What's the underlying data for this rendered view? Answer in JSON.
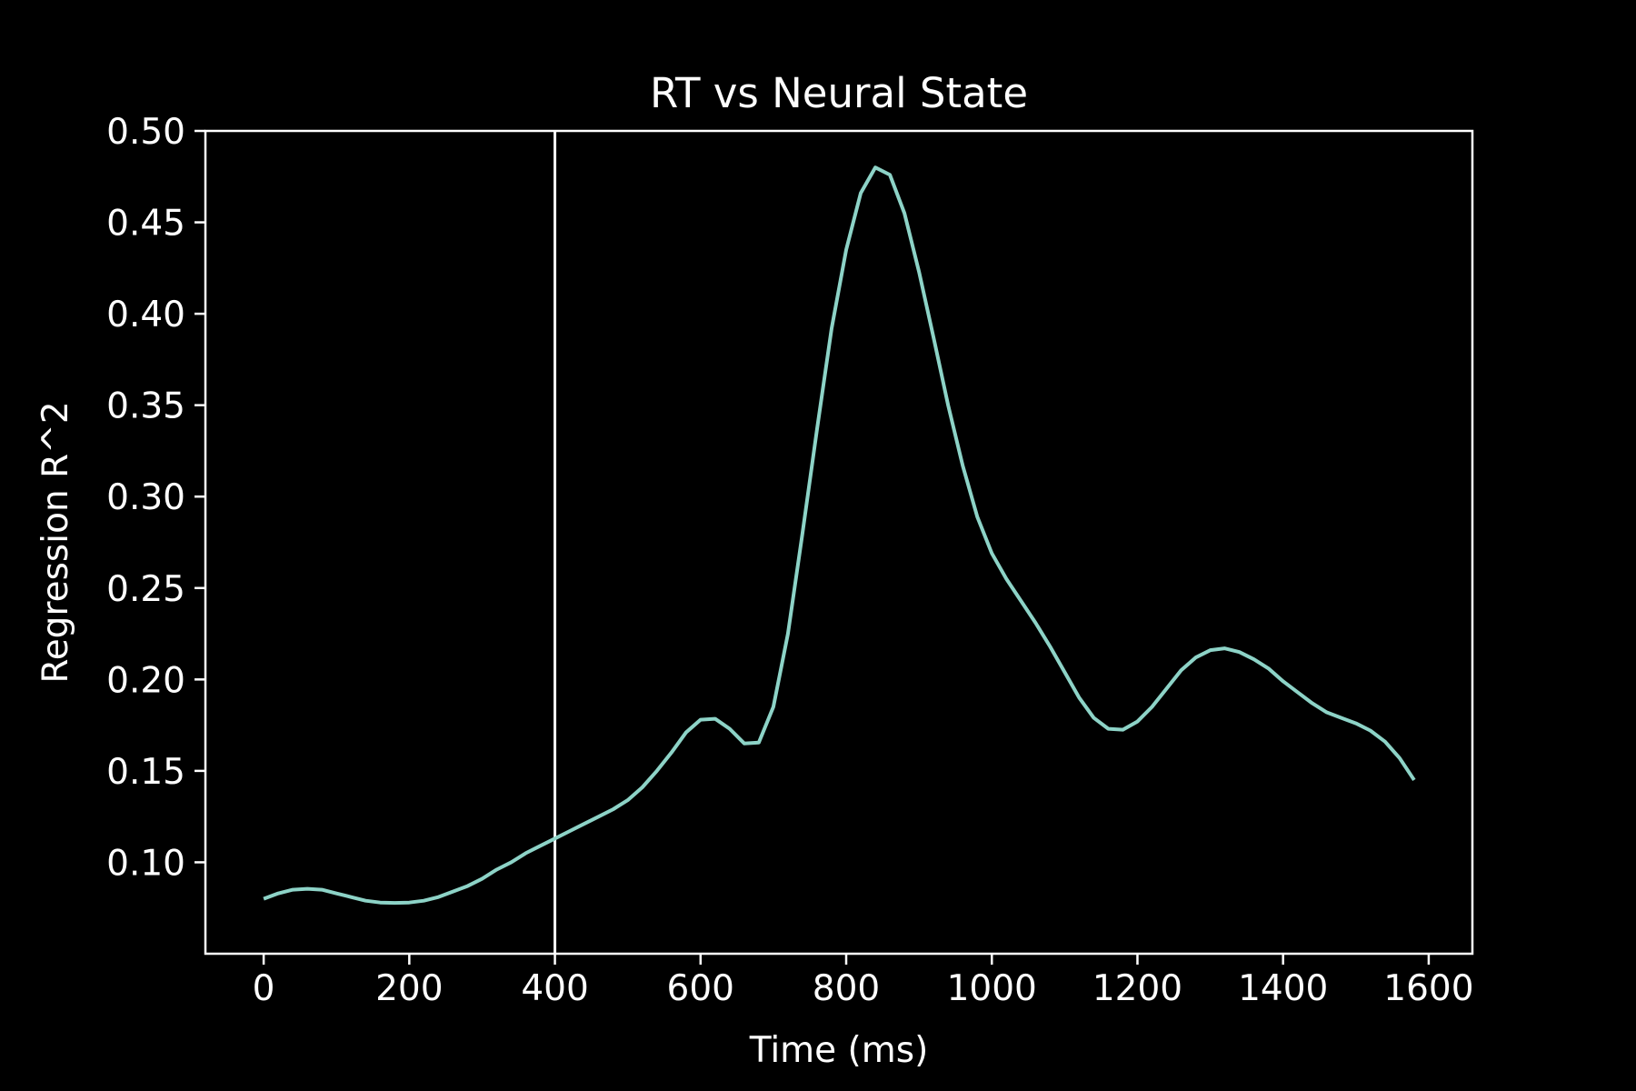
{
  "chart_data": {
    "type": "line",
    "title": "RT vs Neural State",
    "xlabel": "Time (ms)",
    "ylabel": "Regression R^2",
    "xlim": [
      -80,
      1660
    ],
    "ylim": [
      0.05,
      0.5
    ],
    "xticks": [
      0,
      200,
      400,
      600,
      800,
      1000,
      1200,
      1400,
      1600
    ],
    "xtick_labels": [
      "0",
      "200",
      "400",
      "600",
      "800",
      "1000",
      "1200",
      "1400",
      "1600"
    ],
    "yticks": [
      0.1,
      0.15,
      0.2,
      0.25,
      0.3,
      0.35,
      0.4,
      0.45,
      0.5
    ],
    "ytick_labels": [
      "0.10",
      "0.15",
      "0.20",
      "0.25",
      "0.30",
      "0.35",
      "0.40",
      "0.45",
      "0.50"
    ],
    "vline_x": 400,
    "grid": false,
    "colors": {
      "background": "#000000",
      "axes": "#ffffff",
      "line": "#8dd3c7",
      "vline": "#ffffff"
    },
    "series": [
      {
        "x": [
          0,
          20,
          40,
          60,
          80,
          100,
          120,
          140,
          160,
          180,
          200,
          220,
          240,
          260,
          280,
          300,
          320,
          340,
          360,
          380,
          400,
          420,
          440,
          460,
          480,
          500,
          520,
          540,
          560,
          580,
          600,
          620,
          640,
          660,
          680,
          700,
          720,
          740,
          760,
          780,
          800,
          820,
          840,
          860,
          880,
          900,
          920,
          940,
          960,
          980,
          1000,
          1020,
          1040,
          1060,
          1080,
          1100,
          1120,
          1140,
          1160,
          1180,
          1200,
          1220,
          1240,
          1260,
          1280,
          1300,
          1320,
          1340,
          1360,
          1380,
          1400,
          1420,
          1440,
          1460,
          1480,
          1500,
          1520,
          1540,
          1560,
          1580
        ],
        "y": [
          0.08,
          0.083,
          0.085,
          0.0855,
          0.085,
          0.083,
          0.081,
          0.079,
          0.078,
          0.0778,
          0.078,
          0.079,
          0.081,
          0.084,
          0.087,
          0.091,
          0.096,
          0.1,
          0.105,
          0.109,
          0.113,
          0.117,
          0.121,
          0.125,
          0.129,
          0.134,
          0.141,
          0.15,
          0.16,
          0.171,
          0.178,
          0.1785,
          0.173,
          0.165,
          0.1655,
          0.185,
          0.225,
          0.28,
          0.337,
          0.392,
          0.435,
          0.466,
          0.48,
          0.476,
          0.455,
          0.423,
          0.387,
          0.35,
          0.317,
          0.289,
          0.269,
          0.255,
          0.243,
          0.231,
          0.218,
          0.204,
          0.19,
          0.179,
          0.173,
          0.1725,
          0.177,
          0.185,
          0.195,
          0.205,
          0.212,
          0.216,
          0.217,
          0.215,
          0.211,
          0.206,
          0.199,
          0.193,
          0.187,
          0.182,
          0.179,
          0.176,
          0.172,
          0.166,
          0.157,
          0.145
        ]
      }
    ]
  }
}
